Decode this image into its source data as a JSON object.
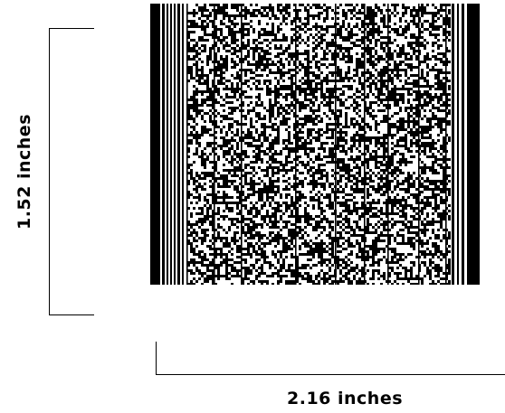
{
  "dimensions": {
    "height_label": "1.52 inches",
    "width_label": "2.16 inches"
  },
  "barcode": {
    "type": "PDF417-style 2D barcode",
    "foreground": "#000000",
    "background": "#ffffff"
  }
}
